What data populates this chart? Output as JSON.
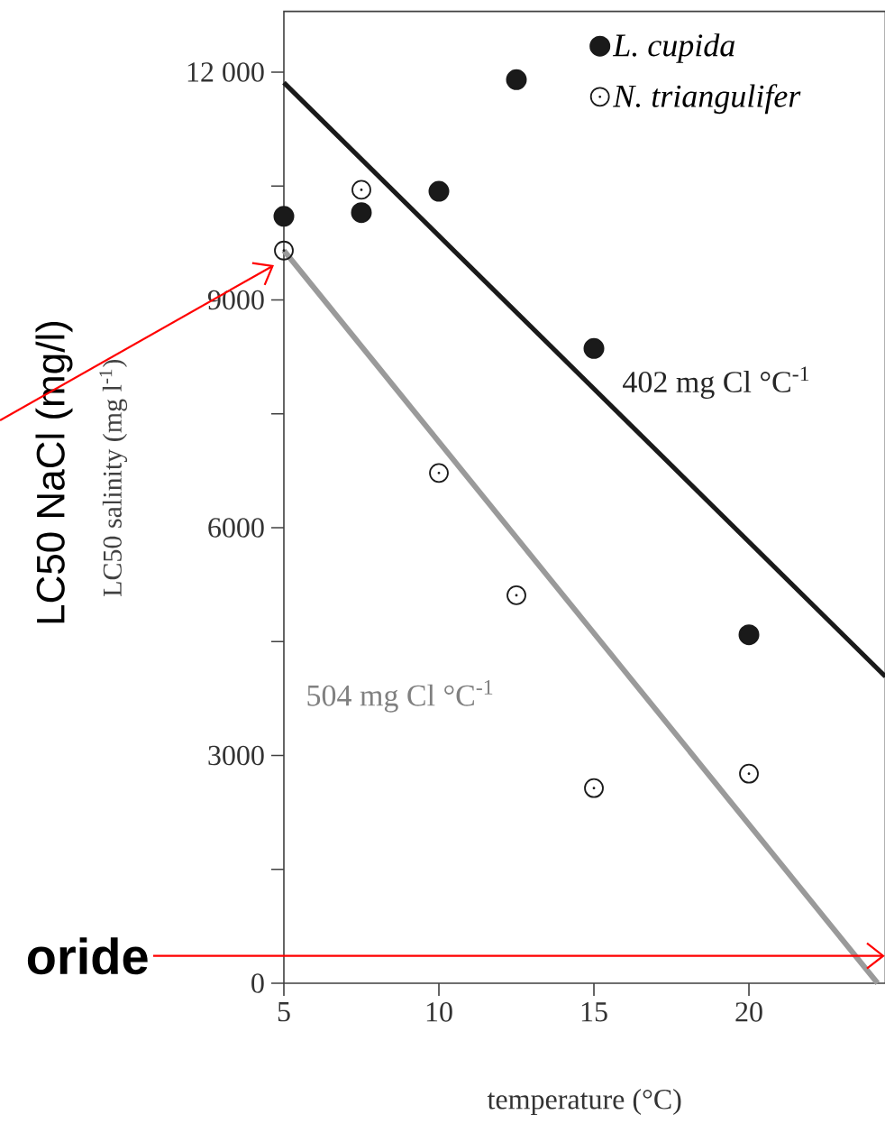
{
  "chart_data": {
    "type": "scatter",
    "xlabel": "temperature (°C)",
    "ylabel": "LC50 salinity (mg l$^{-1}$)",
    "xlim": [
      5,
      24.4
    ],
    "ylim": [
      0,
      12800
    ],
    "xticks": [
      5,
      10,
      15,
      20
    ],
    "yticks": [
      0,
      {
        "value": 1500,
        "label": null
      },
      3000,
      {
        "value": 4500,
        "label": null
      },
      6000,
      {
        "value": 7500,
        "label": null
      },
      9000,
      {
        "value": 10500,
        "label": null
      },
      {
        "value": 12000,
        "label": "12 000"
      }
    ],
    "grid": false,
    "legend": "top right",
    "series": [
      {
        "name": "L. cupida",
        "color": "#1a1a1a",
        "marker": "circle",
        "x": [
          5,
          7.5,
          10,
          12.5,
          15,
          20
        ],
        "values": [
          10100,
          10150,
          10430,
          11900,
          8360,
          4590
        ]
      },
      {
        "name": "N. triangulifer",
        "color": "#1a1a1a",
        "marker": "circle",
        "x": [
          5,
          7.5,
          10,
          12.5,
          15,
          20
        ],
        "values": [
          9650,
          10450,
          6720,
          5110,
          2570,
          2760
        ]
      },
      {
        "type": "line",
        "color": "#1a1a1a",
        "marker": "none",
        "line_style": "solid",
        "x": [
          5,
          24.4
        ],
        "values": [
          11860,
          4040
        ]
      },
      {
        "type": "line",
        "color": "#9a9a9a",
        "marker": "none",
        "line_style": "solid",
        "x": [
          5,
          24.15
        ],
        "values": [
          9650,
          0
        ]
      }
    ],
    "annotations": [
      "402 mg Cl °C$^{-1}$",
      "504 mg Cl °C$^{-1}$",
      "LC50 NaCl (mg/l)"
    ],
    "ref_lines": [
      {
        "axis": "y",
        "value": 360,
        "label": "oride",
        "color": "#ff0000"
      }
    ]
  }
}
